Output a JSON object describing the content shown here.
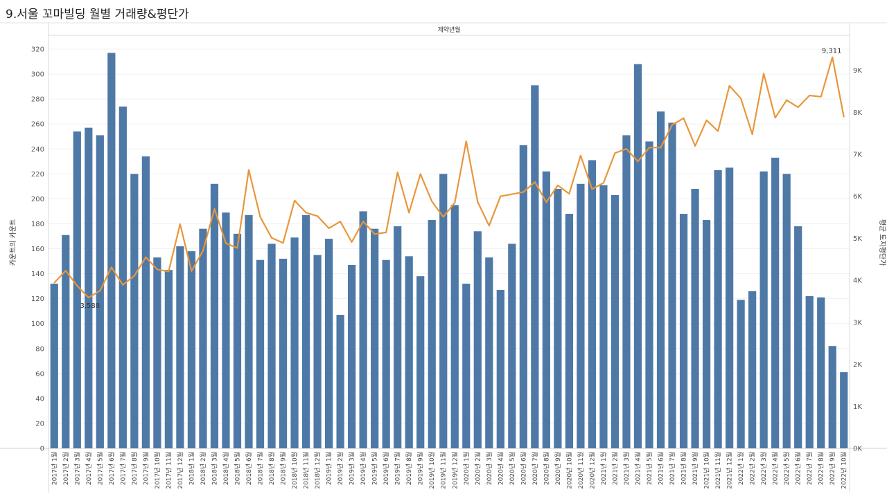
{
  "title": "9.서울 꼬마빌딩 월별 거래량&평단가",
  "chart_data": {
    "type": "bar+line",
    "header": "계약년월",
    "ylabel_left": "카운트의 카운트",
    "ylabel_right": "평균 토지평단가",
    "ylim_left": [
      0,
      330
    ],
    "ylim_right": [
      0,
      9800
    ],
    "left_ticks": [
      "0",
      "20",
      "40",
      "60",
      "80",
      "100",
      "120",
      "140",
      "160",
      "180",
      "200",
      "220",
      "240",
      "260",
      "280",
      "300",
      "320"
    ],
    "right_ticks": [
      "0K",
      "1K",
      "2K",
      "3K",
      "4K",
      "5K",
      "6K",
      "7K",
      "8K",
      "9K"
    ],
    "bar_color": "#4e79a7",
    "line_color": "#e8963a",
    "categories": [
      "2017년 1월",
      "2017년 2월",
      "2017년 3월",
      "2017년 4월",
      "2017년 5월",
      "2017년 6월",
      "2017년 7월",
      "2017년 8월",
      "2017년 9월",
      "2017년 10월",
      "2017년 11월",
      "2017년 12월",
      "2018년 1월",
      "2018년 2월",
      "2018년 3월",
      "2018년 4월",
      "2018년 5월",
      "2018년 6월",
      "2018년 7월",
      "2018년 8월",
      "2018년 9월",
      "2018년 10월",
      "2018년 11월",
      "2018년 12월",
      "2019년 1월",
      "2019년 2월",
      "2019년 3월",
      "2019년 4월",
      "2019년 5월",
      "2019년 6월",
      "2019년 7월",
      "2019년 8월",
      "2019년 9월",
      "2019년 10월",
      "2019년 11월",
      "2019년 12월",
      "2020년 1월",
      "2020년 2월",
      "2020년 3월",
      "2020년 4월",
      "2020년 5월",
      "2020년 6월",
      "2020년 7월",
      "2020년 8월",
      "2020년 9월",
      "2020년 10월",
      "2020년 11월",
      "2020년 12월",
      "2021년 1월",
      "2021년 2월",
      "2021년 3월",
      "2021년 4월",
      "2021년 5월",
      "2021년 6월",
      "2021년 7월",
      "2021년 8월",
      "2021년 9월",
      "2021년 10월",
      "2021년 11월",
      "2021년 12월",
      "2022년 1월",
      "2022년 2월",
      "2022년 3월",
      "2022년 4월",
      "2022년 5월",
      "2022년 6월",
      "2022년 7월",
      "2022년 8월",
      "2022년 9월",
      "2022년 10월"
    ],
    "bar_values": [
      132,
      171,
      254,
      257,
      251,
      317,
      274,
      220,
      234,
      153,
      143,
      162,
      158,
      176,
      212,
      189,
      172,
      187,
      151,
      164,
      152,
      169,
      187,
      155,
      168,
      107,
      147,
      190,
      176,
      151,
      178,
      154,
      138,
      183,
      220,
      195,
      132,
      174,
      153,
      127,
      164,
      243,
      291,
      222,
      208,
      188,
      212,
      231,
      211,
      203,
      251,
      308,
      246,
      270,
      261,
      188,
      208,
      183,
      223,
      225,
      119,
      126,
      222,
      233,
      220,
      178,
      122,
      121,
      82,
      61
    ],
    "line_values": [
      3940,
      4230,
      3870,
      3588,
      3750,
      4310,
      3890,
      4110,
      4550,
      4260,
      4210,
      5340,
      4220,
      4700,
      5700,
      4880,
      4770,
      6630,
      5510,
      5010,
      4890,
      5900,
      5610,
      5530,
      5240,
      5400,
      4910,
      5400,
      5100,
      5140,
      6570,
      5610,
      6530,
      5880,
      5510,
      5850,
      7310,
      5870,
      5300,
      6000,
      6050,
      6100,
      6340,
      5860,
      6260,
      6060,
      6970,
      6170,
      6320,
      7030,
      7130,
      6830,
      7160,
      7160,
      7700,
      7860,
      7200,
      7810,
      7550,
      8630,
      8330,
      7480,
      8920,
      7870,
      8290,
      8120,
      8400,
      8370,
      9311,
      7890
    ],
    "annotations": [
      {
        "index": 3,
        "label": "3,588"
      },
      {
        "index": 68,
        "label": "9,311"
      }
    ]
  }
}
